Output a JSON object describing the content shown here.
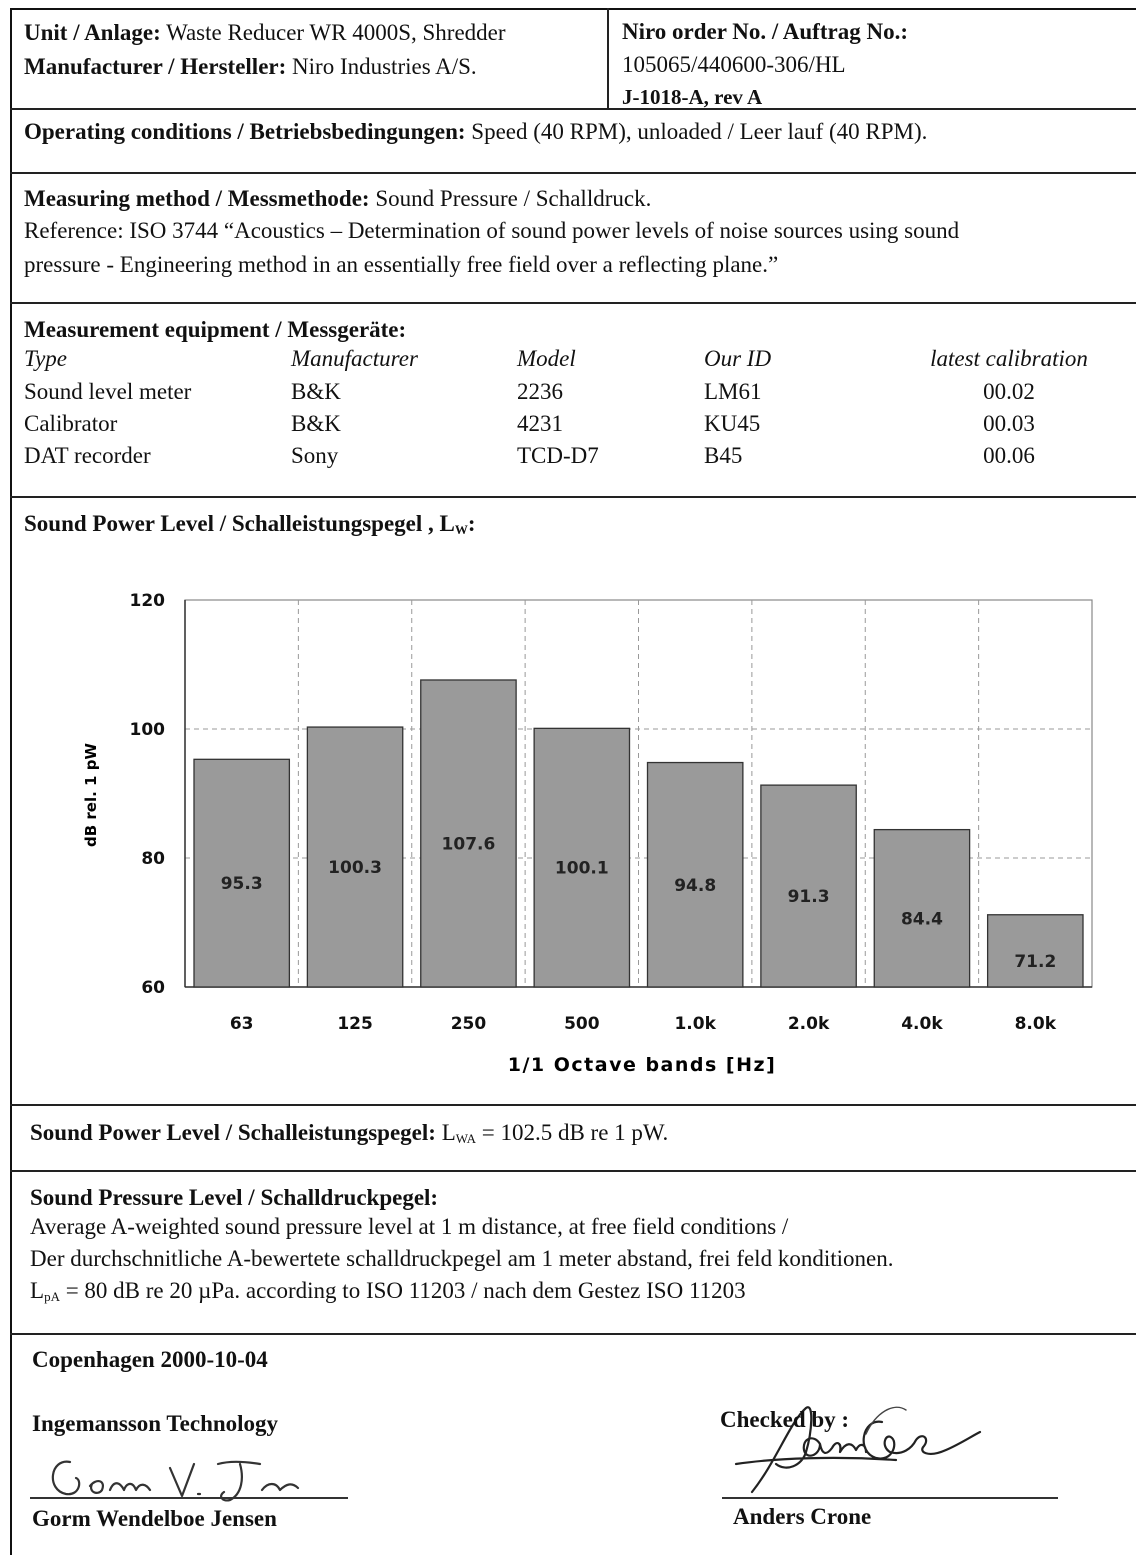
{
  "header": {
    "unit_label": "Unit / Anlage:",
    "unit_value": "Waste Reducer WR 4000S, Shredder",
    "manufacturer_label": "Manufacturer / Hersteller:",
    "manufacturer_value": "Niro Industries A/S.",
    "order_label": "Niro order No. / Auftrag No.:",
    "order_number": "105065/440600-306/HL",
    "doc_ref": "J-1018-A, rev A"
  },
  "operating": {
    "label": "Operating conditions / Betriebsbedingungen:",
    "value": "Speed (40 RPM), unloaded / Leer lauf (40 RPM)."
  },
  "method": {
    "label": "Measuring method / Messmethode:",
    "value": "Sound Pressure /  Schalldruck.",
    "reference_line1": "Reference: ISO 3744   “Acoustics – Determination of sound power levels of noise sources using sound",
    "reference_line2": "pressure - Engineering method in an essentially free field over a reflecting plane.”"
  },
  "equipment": {
    "title": "Measurement equipment / Messgeräte:",
    "headers": [
      "Type",
      "Manufacturer",
      "Model",
      "Our ID",
      "latest calibration"
    ],
    "rows": [
      [
        "Sound level meter",
        "B&K",
        "2236",
        "LM61",
        "00.02"
      ],
      [
        "Calibrator",
        "B&K",
        "4231",
        "KU45",
        "00.03"
      ],
      [
        "DAT recorder",
        "Sony",
        "TCD-D7",
        "B45",
        "00.06"
      ]
    ]
  },
  "chart_section": {
    "title": "Sound Power Level / Schalleistungspegel , L",
    "title_sub": "W",
    "title_end": ":"
  },
  "chart_data": {
    "type": "bar",
    "categories": [
      "63",
      "125",
      "250",
      "500",
      "1.0k",
      "2.0k",
      "4.0k",
      "8.0k"
    ],
    "values": [
      95.3,
      100.3,
      107.6,
      100.1,
      94.8,
      91.3,
      84.4,
      71.2
    ],
    "data_labels": [
      "95.3",
      "100.3",
      "107.6",
      "100.1",
      "94.8",
      "91.3",
      "84.4",
      "71.2"
    ],
    "xlabel": "1/1 Octave bands [Hz]",
    "ylabel": "dB rel. 1 pW",
    "ylim": [
      60,
      120
    ],
    "yticks": [
      "60",
      "80",
      "100",
      "120"
    ],
    "ytick_values": [
      60,
      80,
      100,
      120
    ],
    "grid": true,
    "bar_color": "#9a9a9a"
  },
  "swl": {
    "label": "Sound Power Level / Schalleistungspegel:",
    "pre": "L",
    "sub": "WA",
    "post": " = 102.5 dB re 1 pW."
  },
  "spl": {
    "label": "Sound Pressure Level / Schalldruckpegel:",
    "line1": "Average A-weighted sound pressure level at 1 m distance, at free field conditions /",
    "line2": "Der durchschnitliche A-bewertete schalldruckpegel am 1 meter abstand, frei feld konditionen.",
    "line3_pre": "L",
    "line3_sub": "pA",
    "line3_post": " = 80 dB re 20 µPa. according to ISO 11203 / nach dem Gestez ISO 11203"
  },
  "footer": {
    "place_date": "Copenhagen 2000-10-04",
    "company": "Ingemansson Technology",
    "signer1": "Gorm Wendelboe Jensen",
    "checked_label": "Checked by :",
    "signer2": "Anders Crone"
  }
}
